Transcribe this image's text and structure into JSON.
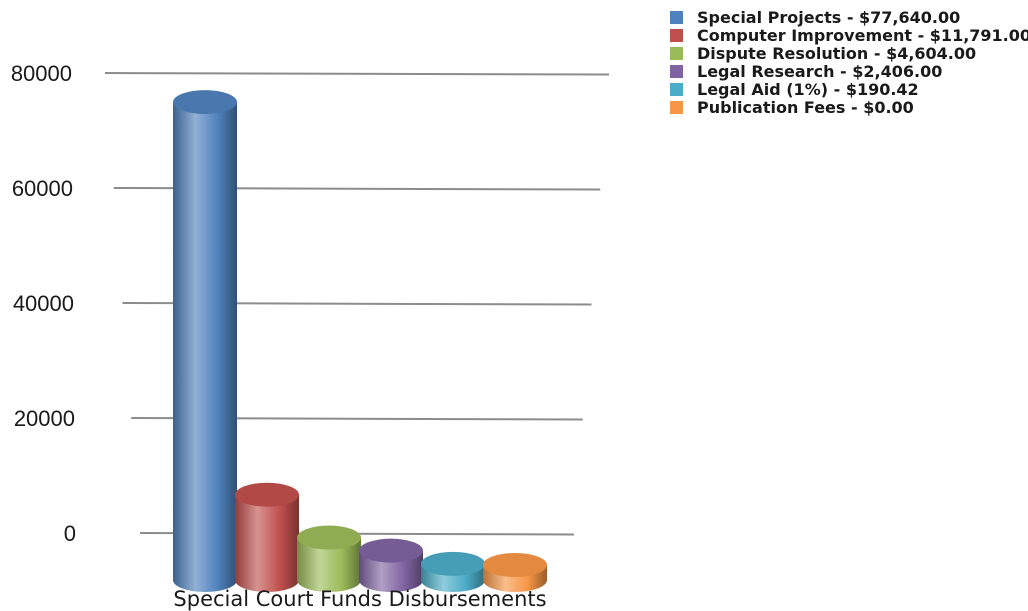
{
  "chart_data": {
    "type": "bar",
    "title": "",
    "xlabel": "",
    "ylabel": "",
    "categories": [
      "Special Court Funds Disbursements"
    ],
    "ylim": [
      0,
      80000
    ],
    "yticks": [
      "0",
      "20000",
      "40000",
      "60000",
      "80000"
    ],
    "grid": true,
    "legend_position": "top-right",
    "series": [
      {
        "name": "Special Projects  - $77,640.00",
        "values": [
          77640.0
        ],
        "color": "#4F81BD"
      },
      {
        "name": "Computer Improvement - $11,791.00",
        "values": [
          11791.0
        ],
        "color": "#C0504D"
      },
      {
        "name": "Dispute Resolution - $4,604.00",
        "values": [
          4604.0
        ],
        "color": "#9BBB59"
      },
      {
        "name": "Legal Research - $2,406.00",
        "values": [
          2406.0
        ],
        "color": "#8064A2"
      },
      {
        "name": "Legal Aid  (1%) - $190.42",
        "values": [
          190.42
        ],
        "color": "#4BACC6"
      },
      {
        "name": "Publication Fees - $0.00",
        "values": [
          0.0
        ],
        "color": "#F79646"
      }
    ]
  }
}
